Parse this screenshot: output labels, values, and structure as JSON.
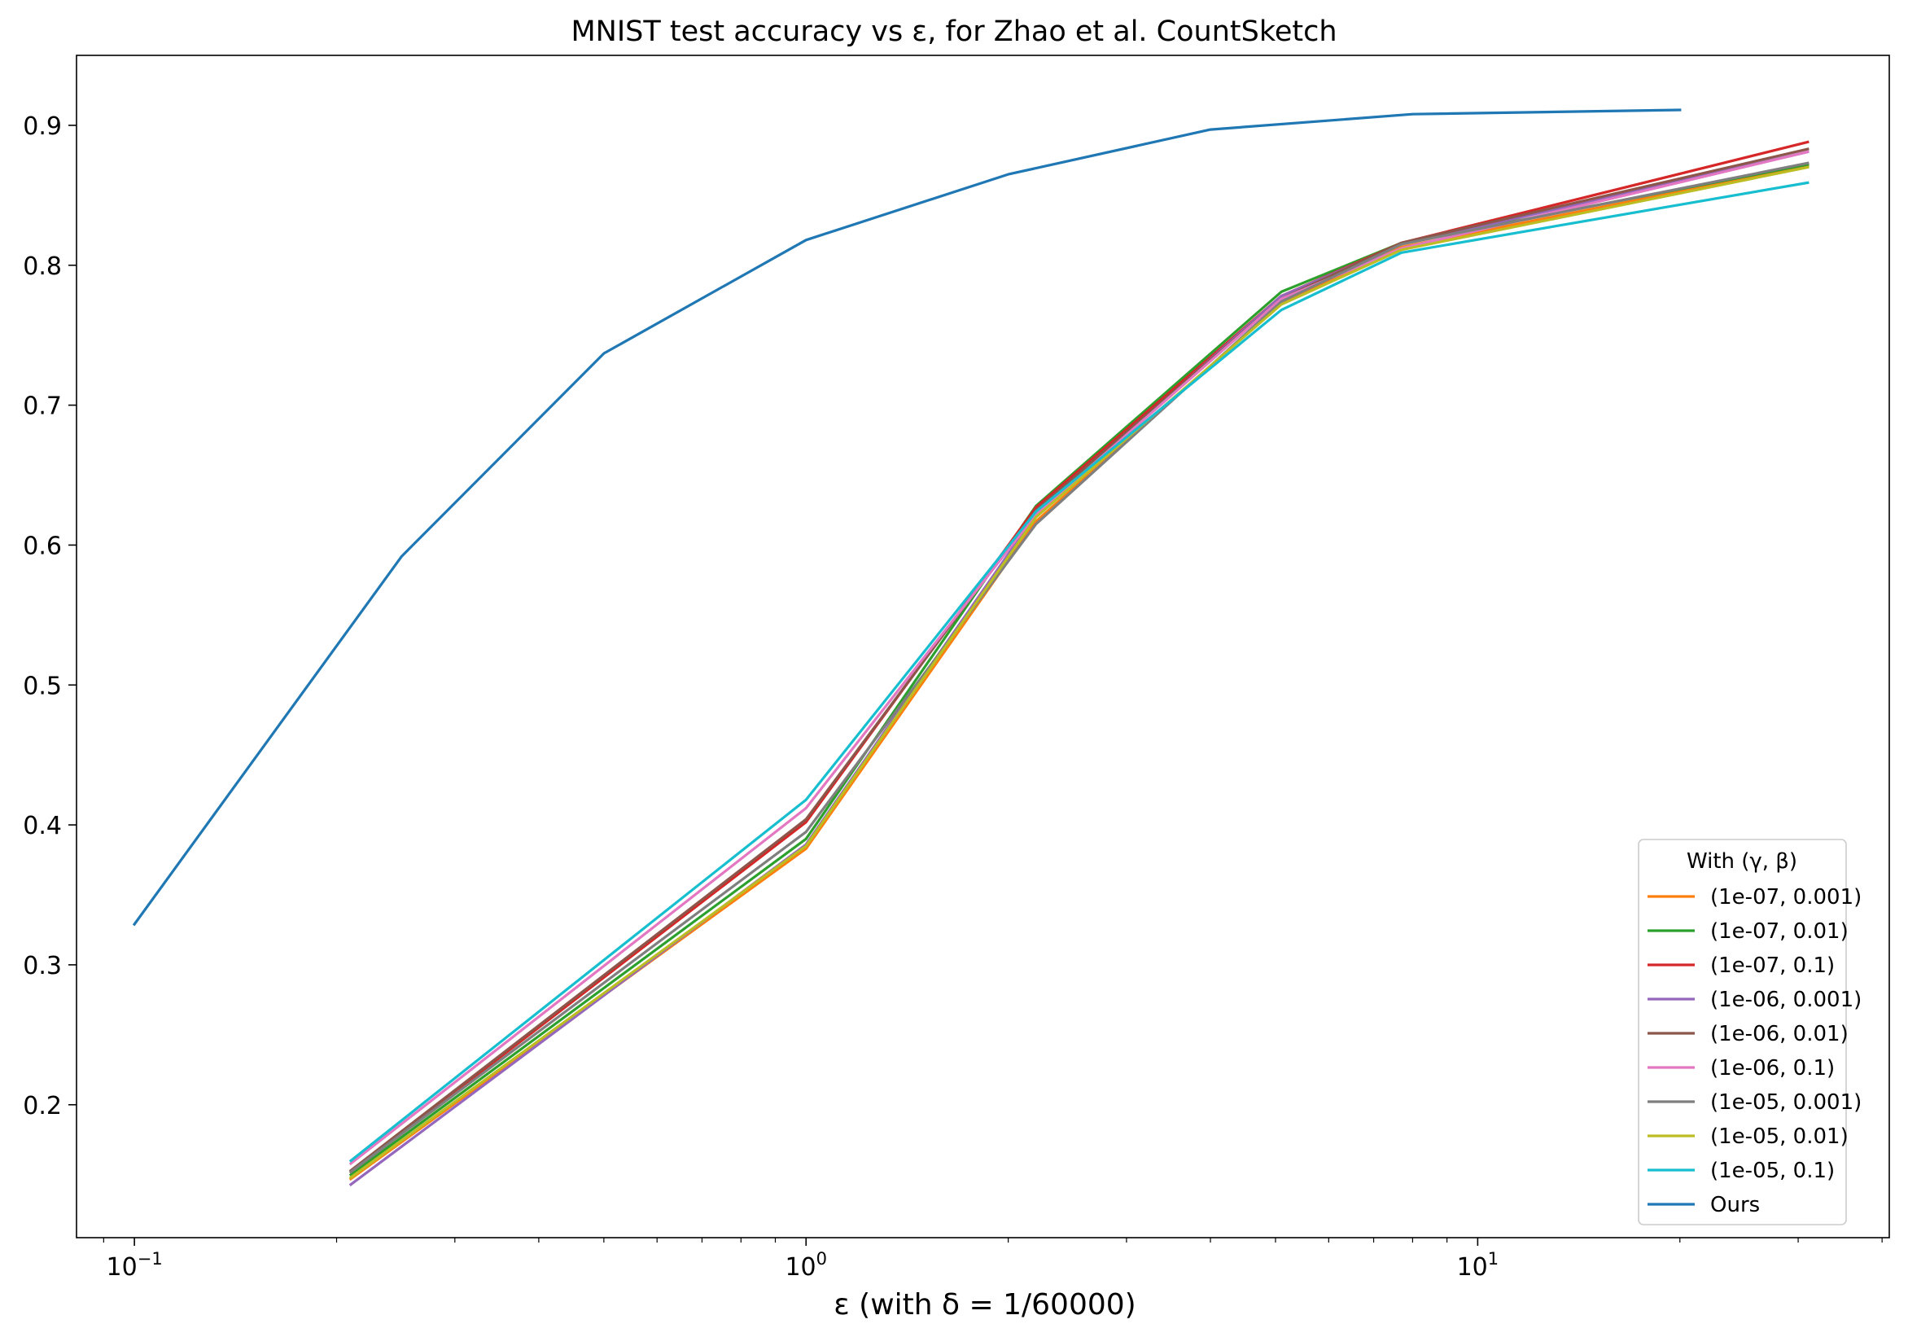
{
  "chart_data": {
    "type": "line",
    "title": "MNIST test accuracy vs ε, for Zhao et al. CountSketch",
    "xlabel": "ε (with δ = 1/60000)",
    "ylabel": "",
    "xscale": "log",
    "xlim": [
      0.082,
      41
    ],
    "ylim": [
      0.105,
      0.95
    ],
    "xticks": [
      {
        "value": 0.1,
        "base": "10",
        "exp": "−1"
      },
      {
        "value": 1,
        "base": "10",
        "exp": "0"
      },
      {
        "value": 10,
        "base": "10",
        "exp": "1"
      }
    ],
    "yticks": [
      "0.2",
      "0.3",
      "0.4",
      "0.5",
      "0.6",
      "0.7",
      "0.8",
      "0.9"
    ],
    "grid": false,
    "legend": {
      "title": "With (γ, β)",
      "position": "bottom-right"
    },
    "series": [
      {
        "name": "(1e-07, 0.001)",
        "color": "#ff7f0e",
        "x": [
          0.21,
          1.0,
          2.2,
          5.1,
          7.7,
          31.0
        ],
        "y": [
          0.147,
          0.383,
          0.617,
          0.773,
          0.813,
          0.871
        ]
      },
      {
        "name": "(1e-07, 0.01)",
        "color": "#2ca02c",
        "x": [
          0.21,
          1.0,
          2.2,
          5.1,
          7.7,
          31.0
        ],
        "y": [
          0.15,
          0.39,
          0.628,
          0.781,
          0.816,
          0.872
        ]
      },
      {
        "name": "(1e-07, 0.1)",
        "color": "#d62728",
        "x": [
          0.21,
          1.0,
          2.2,
          5.1,
          7.7,
          31.0
        ],
        "y": [
          0.152,
          0.402,
          0.627,
          0.778,
          0.816,
          0.888
        ]
      },
      {
        "name": "(1e-06, 0.001)",
        "color": "#9467bd",
        "x": [
          0.21,
          1.0,
          2.2,
          5.1,
          7.7,
          31.0
        ],
        "y": [
          0.143,
          0.386,
          0.622,
          0.778,
          0.815,
          0.881
        ]
      },
      {
        "name": "(1e-06, 0.01)",
        "color": "#8c564b",
        "x": [
          0.21,
          1.0,
          2.2,
          5.1,
          7.7,
          31.0
        ],
        "y": [
          0.153,
          0.404,
          0.625,
          0.776,
          0.816,
          0.883
        ]
      },
      {
        "name": "(1e-06, 0.1)",
        "color": "#e377c2",
        "x": [
          0.21,
          1.0,
          2.2,
          5.1,
          7.7,
          31.0
        ],
        "y": [
          0.158,
          0.412,
          0.622,
          0.776,
          0.812,
          0.881
        ]
      },
      {
        "name": "(1e-05, 0.001)",
        "color": "#7f7f7f",
        "x": [
          0.21,
          1.0,
          2.2,
          5.1,
          7.7,
          31.0
        ],
        "y": [
          0.152,
          0.395,
          0.615,
          0.774,
          0.815,
          0.873
        ]
      },
      {
        "name": "(1e-05, 0.01)",
        "color": "#bcbd22",
        "x": [
          0.21,
          1.0,
          2.2,
          5.1,
          7.7,
          31.0
        ],
        "y": [
          0.148,
          0.385,
          0.62,
          0.772,
          0.811,
          0.87
        ]
      },
      {
        "name": "(1e-05, 0.1)",
        "color": "#17becf",
        "x": [
          0.21,
          1.0,
          2.2,
          5.1,
          7.7,
          31.0
        ],
        "y": [
          0.16,
          0.418,
          0.624,
          0.768,
          0.809,
          0.859
        ]
      },
      {
        "name": "Ours",
        "color": "#1f77b4",
        "x": [
          0.1,
          0.25,
          0.5,
          1.0,
          2.0,
          4.0,
          8.0,
          20.0
        ],
        "y": [
          0.329,
          0.592,
          0.737,
          0.818,
          0.865,
          0.897,
          0.908,
          0.911
        ]
      }
    ]
  }
}
